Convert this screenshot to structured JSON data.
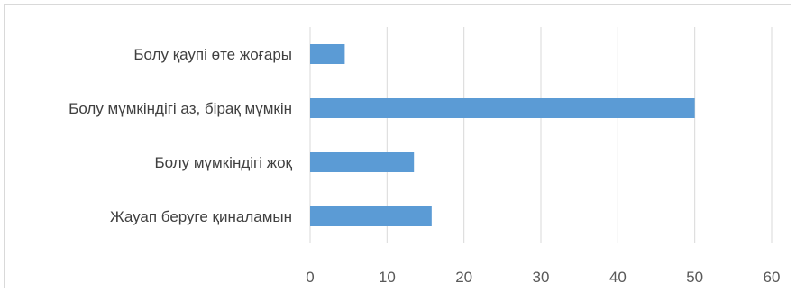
{
  "chart_data": {
    "type": "bar",
    "orientation": "horizontal",
    "categories": [
      "Болу қаупі өте жоғары",
      "Болу мүмкіндігі аз, бірақ мүмкін",
      "Болу мүмкіндігі жоқ",
      "Жауап беруге қиналамын"
    ],
    "values": [
      4.5,
      50,
      13.5,
      15.8
    ],
    "xlim": [
      0,
      60
    ],
    "xticks": [
      "0",
      "10",
      "20",
      "30",
      "40",
      "50",
      "60"
    ],
    "title": "",
    "xlabel": "",
    "ylabel": "",
    "grid": "vertical",
    "legend": "none",
    "bar_color": "#5b9bd5",
    "grid_color": "#d9d9d9"
  }
}
